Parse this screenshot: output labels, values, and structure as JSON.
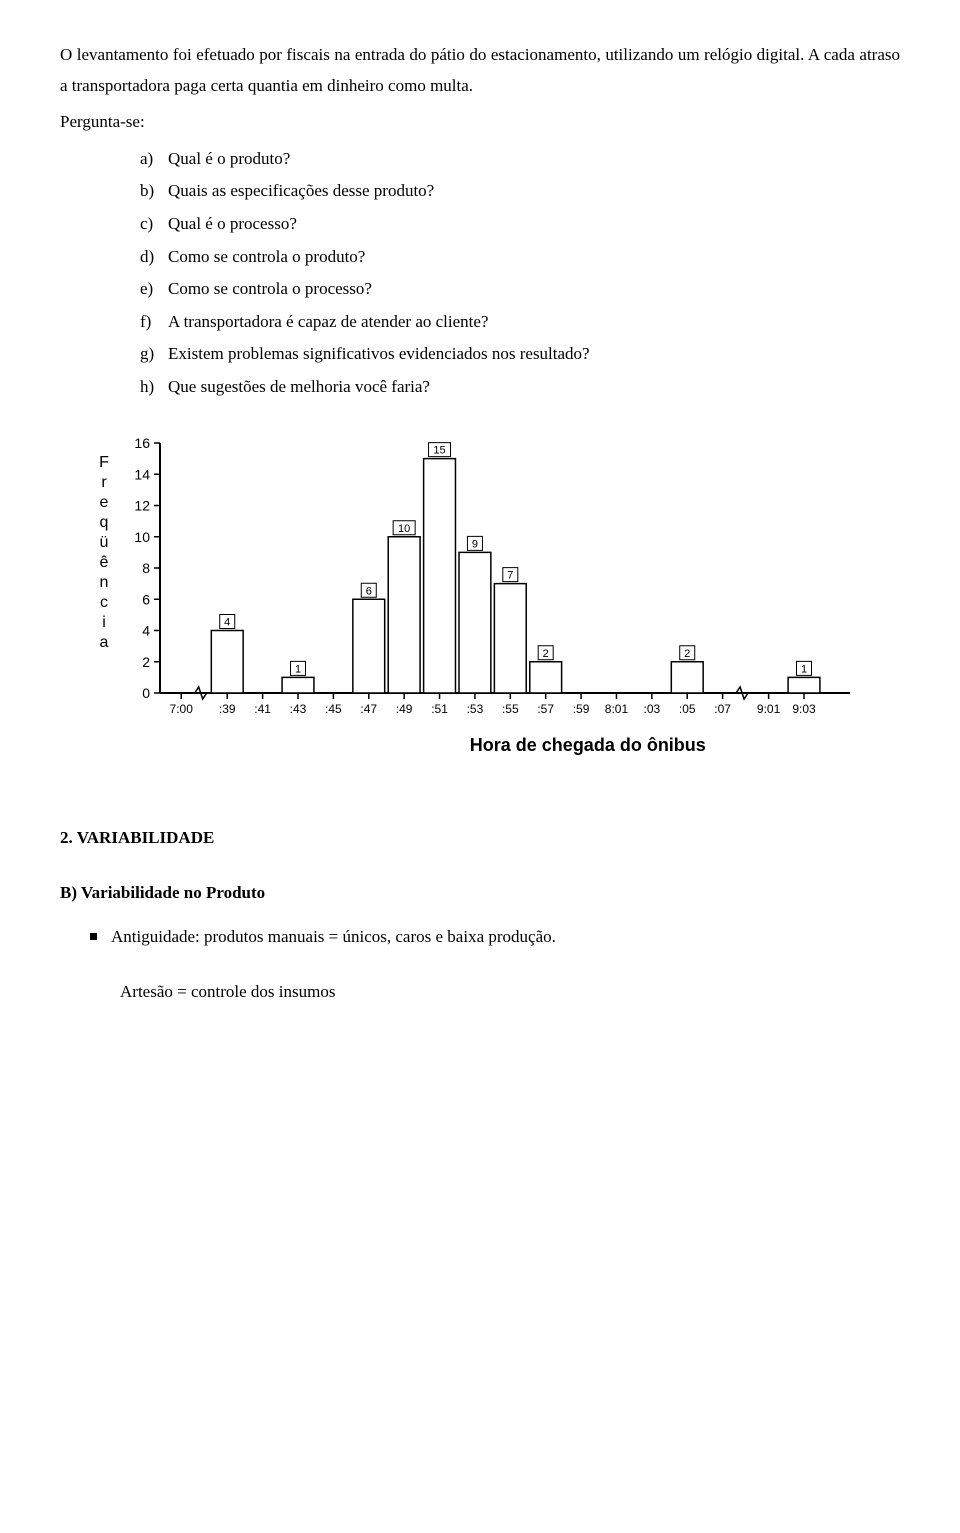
{
  "intro": {
    "p1": "O levantamento foi efetuado por fiscais na entrada do pátio do estacionamento, utilizando um relógio digital. A cada atraso a transportadora paga certa quantia em dinheiro como multa.",
    "p2": "Pergunta-se:"
  },
  "questions": [
    {
      "marker": "a)",
      "text": "Qual é o produto?"
    },
    {
      "marker": "b)",
      "text": "Quais as especificações desse produto?"
    },
    {
      "marker": "c)",
      "text": "Qual é o processo?"
    },
    {
      "marker": "d)",
      "text": "Como se controla o produto?"
    },
    {
      "marker": "e)",
      "text": "Como se controla o processo?"
    },
    {
      "marker": "f)",
      "text": "A transportadora é capaz de atender ao cliente?"
    },
    {
      "marker": "g)",
      "text": "Existem problemas significativos evidenciados nos resultado?"
    },
    {
      "marker": "h)",
      "text": "Que sugestões de melhoria você faria?"
    }
  ],
  "chart": {
    "type": "histogram",
    "ylabel": "Freqüência",
    "xlabel": "Hora de chegada do ônibus",
    "ylim": [
      0,
      16
    ],
    "ytick_step": 2,
    "yticks": [
      0,
      2,
      4,
      6,
      8,
      10,
      12,
      14,
      16
    ],
    "bar_color": "#ffffff",
    "bar_border": "#000000",
    "axis_color": "#000000",
    "background_color": "#ffffff",
    "label_fontfamily": "Helvetica, Arial, sans-serif",
    "label_fontsize": 14,
    "xlabel_fontsize": 18,
    "bar_width": 0.9,
    "x_categories": [
      "7:00",
      ":39",
      ":41",
      ":43",
      ":45",
      ":47",
      ":49",
      ":51",
      ":53",
      ":55",
      ":57",
      ":59",
      "8:01",
      ":03",
      ":05",
      ":07",
      "9:01",
      "9:03"
    ],
    "bars": [
      {
        "x": ":39",
        "value": 4
      },
      {
        "x": ":43",
        "value": 1
      },
      {
        "x": ":47",
        "value": 6
      },
      {
        "x": ":49",
        "value": 10
      },
      {
        "x": ":51",
        "value": 15
      },
      {
        "x": ":53",
        "value": 9
      },
      {
        "x": ":55",
        "value": 7
      },
      {
        "x": ":57",
        "value": 2
      },
      {
        "x": ":05",
        "value": 2
      },
      {
        "x": "9:03",
        "value": 1
      }
    ],
    "axis_breaks_after": [
      "7:00",
      ":07"
    ]
  },
  "section2": {
    "title": "2.  VARIABILIDADE",
    "headingB": "B)  Variabilidade no Produto",
    "bullet": "Antiguidade: produtos manuais = únicos, caros e baixa produção.",
    "lastline": "Artesão = controle dos insumos"
  }
}
